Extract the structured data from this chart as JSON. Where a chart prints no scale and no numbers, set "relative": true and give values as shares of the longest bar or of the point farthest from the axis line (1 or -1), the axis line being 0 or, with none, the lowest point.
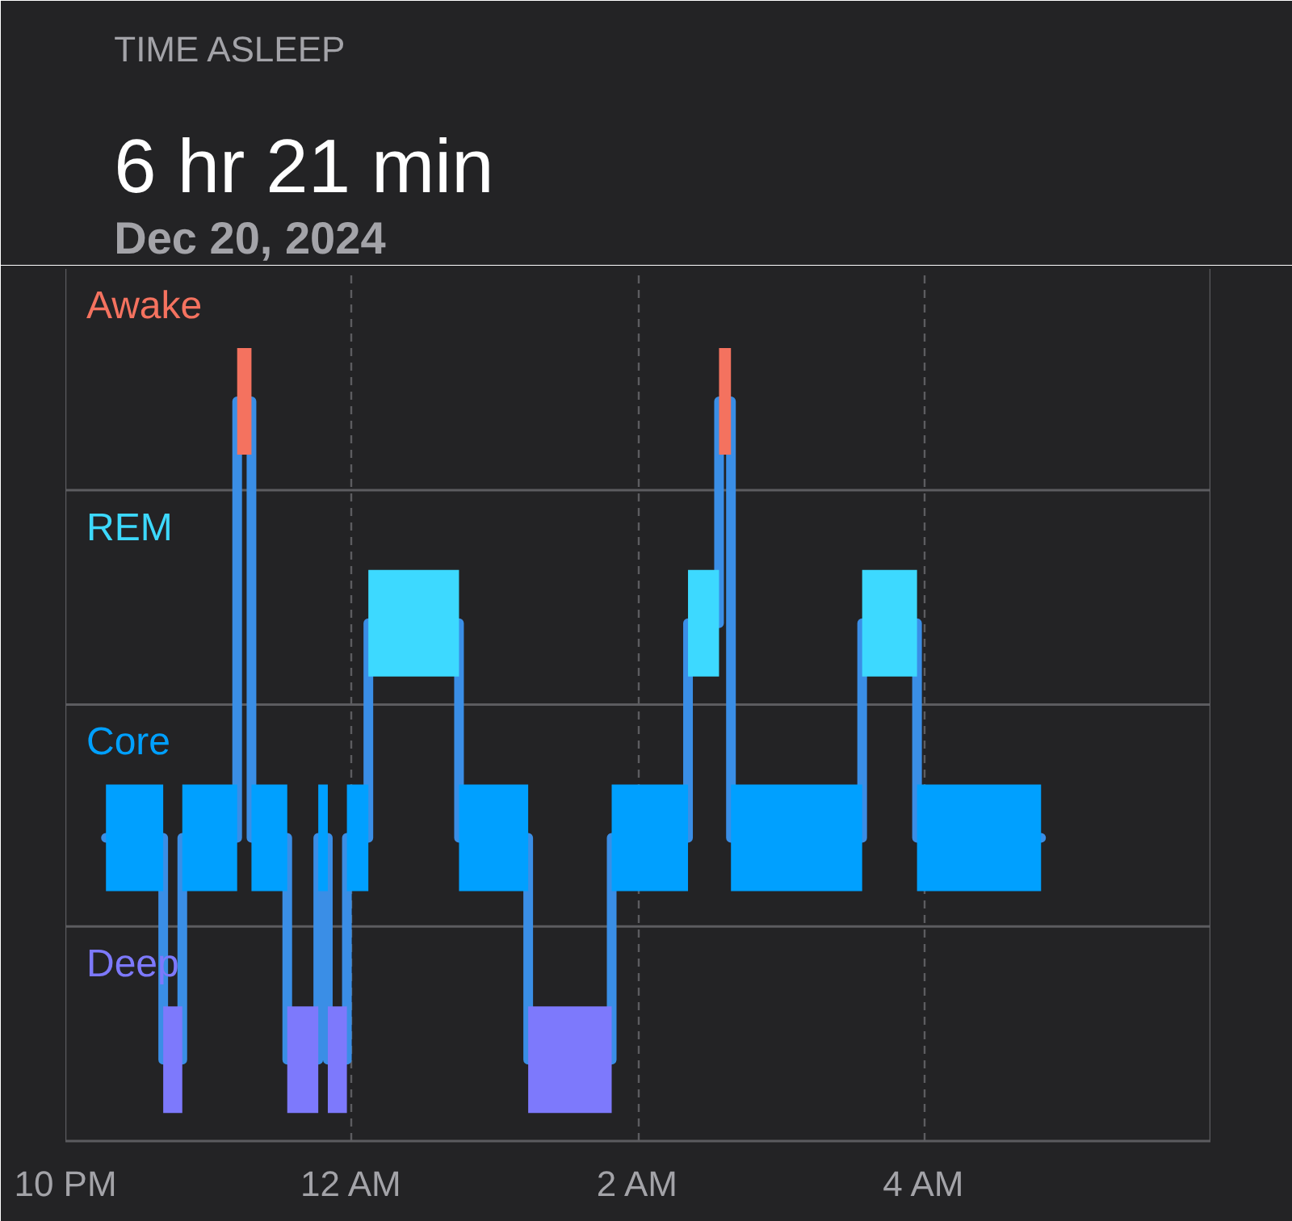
{
  "chart_data": {
    "type": "step",
    "title": "TIME ASLEEP",
    "subtitle": "6 hr 21 min",
    "annotations": [
      "Dec 20, 2024"
    ],
    "x": [
      "2024-12-19T22:17",
      "2024-12-19T22:41",
      "2024-12-19T22:49",
      "2024-12-19T23:12",
      "2024-12-19T23:18",
      "2024-12-19T23:33",
      "2024-12-19T23:46",
      "2024-12-19T23:50",
      "2024-12-19T23:58",
      "2024-12-20T00:07",
      "2024-12-20T00:45",
      "2024-12-20T01:14",
      "2024-12-20T01:49",
      "2024-12-20T02:21",
      "2024-12-20T02:34",
      "2024-12-20T02:39",
      "2024-12-20T03:34",
      "2024-12-20T03:57",
      "2024-12-20T04:49"
    ],
    "series": [
      {
        "color": "#3a8ee6",
        "values": [
          0.41,
          0.11,
          0.41,
          1,
          0.41,
          0.11,
          0.41,
          0.11,
          0.41,
          0.7,
          0.41,
          0.11,
          0.41,
          0.7,
          1,
          0.41,
          0.7,
          0.41,
          0.41
        ]
      },
      {
        "name": "Awake",
        "color": "#f4725f",
        "values": [
          null,
          null,
          null,
          1,
          null,
          null,
          null,
          null,
          null,
          null,
          null,
          null,
          null,
          null,
          1,
          1,
          null,
          null,
          null
        ]
      },
      {
        "name": "REM",
        "color": "#3dd9ff",
        "values": [
          null,
          null,
          null,
          null,
          null,
          null,
          null,
          null,
          null,
          0.7,
          null,
          null,
          null,
          0.7,
          null,
          null,
          0.7,
          0.7,
          null
        ]
      },
      {
        "name": "Core",
        "color": "#00a0ff",
        "values": [
          0.41,
          null,
          0.41,
          null,
          0.41,
          null,
          0.41,
          null,
          0.41,
          null,
          0.41,
          null,
          0.41,
          null,
          null,
          0.41,
          null,
          0.41,
          0.41
        ]
      },
      {
        "name": "Deep",
        "color": "#7d79fc",
        "values": [
          null,
          0.11,
          null,
          null,
          null,
          0.11,
          null,
          0.11,
          null,
          null,
          null,
          0.11,
          0.11,
          null,
          null,
          null,
          null,
          null,
          null
        ]
      }
    ],
    "relative": true,
    "xlim": [
      "2024-12-19T22:00",
      "2024-12-20T06:00"
    ],
    "xticks": [
      {
        "value": "2024-12-19T22:00",
        "label": "10 PM"
      },
      {
        "value": "2024-12-20T00:00",
        "label": "12 AM"
      },
      {
        "value": "2024-12-20T02:00",
        "label": "2 AM"
      },
      {
        "value": "2024-12-20T04:00",
        "label": "4 AM"
      }
    ],
    "grid": "x",
    "ref_lines": [
      {
        "axis": "y",
        "value": 0.29,
        "color": "#5c5c60"
      },
      {
        "axis": "y",
        "value": 0.59,
        "color": "#5c5c60"
      },
      {
        "axis": "y",
        "value": 0.88,
        "color": "#5c5c60"
      }
    ]
  }
}
